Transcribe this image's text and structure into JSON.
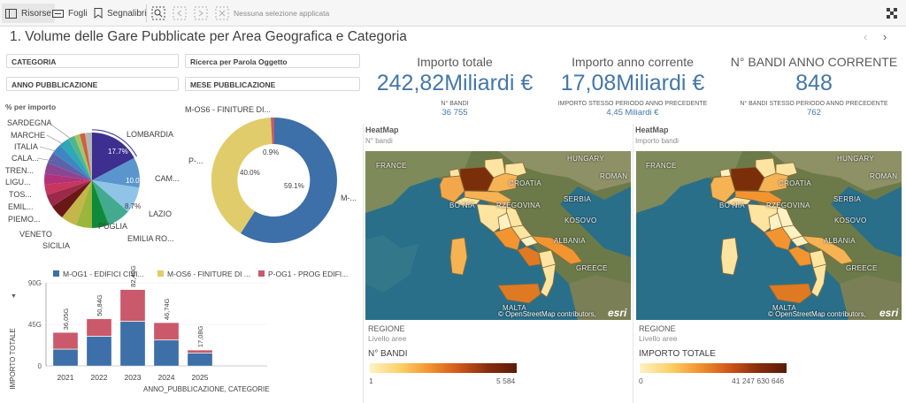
{
  "toolbar": {
    "risorse": "Risorse",
    "fogli": "Fogli",
    "segnalibri": "Segnalibri",
    "selection_text": "Nessuna selezione applicata"
  },
  "sheet": {
    "title": "1. Volume delle Gare Pubblicate per Area Geografica e Categoria"
  },
  "filters": [
    {
      "label": "CATEGORIA"
    },
    {
      "label": "Ricerca per Parola Oggetto"
    },
    {
      "label": "ANNO PUBBLICAZIONE"
    },
    {
      "label": "MESE PUBBLICAZIONE"
    }
  ],
  "kpis": [
    {
      "title": "Importo totale",
      "value": "242,82Miliardi €",
      "sub_label": "N° BANDI",
      "sub_value": "36 755"
    },
    {
      "title": "Importo anno corrente",
      "value": "17,08Miliardi €",
      "sub_label": "IMPORTO STESSO PERIODO ANNO PRECEDENTE",
      "sub_value": "4,45 Miliardi €"
    },
    {
      "title": "N° BANDI ANNO CORRENTE",
      "value": "848",
      "sub_label": "N° BANDI STESSO PERIODO ANNO PRECEDENTE",
      "sub_value": "762"
    }
  ],
  "pie": {
    "title": "% per importo",
    "labels_left": [
      "SARDEGNA",
      "MARCHE",
      "ITALIA",
      "CALA...",
      "TREN...",
      "LIGU...",
      "TOS...",
      "EMIL...",
      "PIEMO...",
      "VENETO",
      "SICILIA"
    ],
    "labels_right": [
      "LOMBARDIA",
      "CAM...",
      "LAZIO",
      "EMILIA RO...",
      "PUGLIA"
    ],
    "slice_labels": [
      "17.7%",
      "10.0%",
      "8.7%"
    ]
  },
  "donut": {
    "labels": [
      "M-OS6 - FINITURE DI...",
      "P-...",
      "M-..."
    ],
    "slice_labels": [
      "0.9%",
      "40.0%",
      "59.1%"
    ]
  },
  "maps": [
    {
      "title": "HeatMap",
      "subtitle": "N° bandi",
      "legend_region": "REGIONE",
      "legend_level": "Livello aree",
      "legend_head": "N° BANDI",
      "min": "1",
      "max": "5 584"
    },
    {
      "title": "HeatMap",
      "subtitle": "Importo bandi",
      "legend_region": "REGIONE",
      "legend_level": "Livello aree",
      "legend_head": "IMPORTO TOTALE",
      "min": "0",
      "max": "41 247 630 646"
    }
  ],
  "map_labels": {
    "france": "FRANCE",
    "hungary": "HUNGARY",
    "croatia": "CROATIA",
    "roman": "ROMAN",
    "serbia": "SERBIA",
    "bosnia": "BO NIA",
    "rzegovina": "RZEGOVINA",
    "kosovo": "KOSOVO",
    "albania": "ALBANIA",
    "greece": "GREECE",
    "malta": "MALTA",
    "copyright": "© OpenStreetMap contributors,",
    "esri": "esri"
  },
  "chart_data": {
    "type": "bar",
    "categories": [
      "2021",
      "2022",
      "2023",
      "2024",
      "2025"
    ],
    "series": [
      {
        "name": "M-OG1 - EDIFICI CIVI...",
        "color": "#3d6fa8",
        "values": [
          18.0,
          32.0,
          48.0,
          28.0,
          14.0
        ]
      },
      {
        "name": "M-OS6 - FINITURE DI ...",
        "color": "#e0cc6a",
        "values": [
          0.3,
          0.4,
          0.5,
          0.3,
          0.2
        ]
      },
      {
        "name": "P-OG1 - PROG EDIFI...",
        "color": "#c9596b",
        "values": [
          17.75,
          18.44,
          33.98,
          18.44,
          2.88
        ]
      }
    ],
    "totals": [
      "36,05G",
      "50,84G",
      "82,48G",
      "46,74G",
      "17,08G"
    ],
    "ylabel": "IMPORTO TOTALE",
    "xlabel": "ANNO_PUBBLICAZIONE, CATEGORIE",
    "yticks": [
      "0",
      "45G",
      "90G"
    ],
    "ylim": [
      0,
      90
    ]
  }
}
